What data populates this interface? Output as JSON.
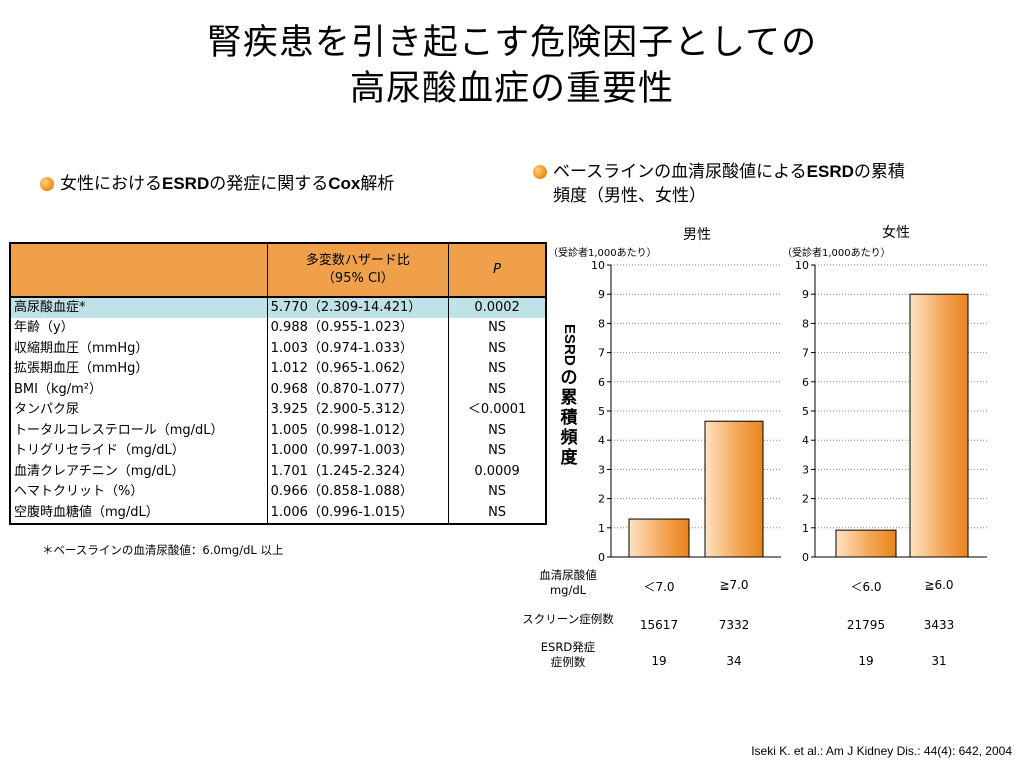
{
  "title": {
    "line1": "腎疾患を引き起こす危険因子としての",
    "line2": "高尿酸血症の重要性"
  },
  "left_heading": {
    "pre": "女性における",
    "b1": "ESRD",
    "mid": "の発症に関する",
    "b2": "Cox",
    "post": "解析"
  },
  "right_heading": {
    "pre": "ベースラインの血清尿酸値による",
    "b1": "ESRD",
    "post": "の累積",
    "line2": "頻度（男性、女性）"
  },
  "table": {
    "header": {
      "col2_line1": "多変数ハザード比",
      "col2_line2": "（95% CI）",
      "col3": "P"
    },
    "rows": [
      {
        "label": "高尿酸血症*",
        "hr": "5.770（2.309-14.421）",
        "p": "0.0002"
      },
      {
        "label": "年齢（y）",
        "hr": "0.988（0.955-1.023）",
        "p": "NS"
      },
      {
        "label": "収縮期血圧（mmHg）",
        "hr": "1.003（0.974-1.033）",
        "p": "NS"
      },
      {
        "label": "拡張期血圧（mmHg）",
        "hr": "1.012（0.965-1.062）",
        "p": "NS"
      },
      {
        "label": "BMI（kg/m²）",
        "hr": "0.968（0.870-1.077）",
        "p": "NS"
      },
      {
        "label": "タンパク尿",
        "hr": "3.925（2.900-5.312）",
        "p": "＜0.0001"
      },
      {
        "label": "トータルコレステロール（mg/dL）",
        "hr": "1.005（0.998-1.012）",
        "p": "NS"
      },
      {
        "label": "トリグリセライド（mg/dL）",
        "hr": "1.000（0.997-1.003）",
        "p": "NS"
      },
      {
        "label": "血清クレアチニン（mg/dL）",
        "hr": "1.701（1.245-2.324）",
        "p": "0.0009"
      },
      {
        "label": "ヘマトクリット（%）",
        "hr": "0.966（0.858-1.088）",
        "p": "NS"
      },
      {
        "label": "空腹時血糖値（mg/dL）",
        "hr": "1.006（0.996-1.015）",
        "p": "NS"
      }
    ]
  },
  "footnote": "＊ベースラインの血清尿酸値：6.0mg/dL 以上",
  "citation": "Iseki K. et al.: Am J Kidney Dis.: 44(4): 642, 2004",
  "colors": {
    "bar_light": "#fde3c4",
    "bar_dark": "#e8841c",
    "header": "#f0a04b",
    "highlight": "#bfe2e8"
  },
  "chart_data": [
    {
      "type": "bar",
      "title": "男性",
      "unit_note": "（受診者1,000あたり）",
      "ylabel": "ESRDの累積頻度",
      "ylim": [
        0,
        10
      ],
      "yticks": [
        "0",
        "1",
        "2",
        "3",
        "4",
        "5",
        "6",
        "7",
        "8",
        "9",
        "10"
      ],
      "categories": [
        "＜7.0",
        "≧7.0"
      ],
      "values": [
        1.3,
        4.65
      ],
      "screened": [
        "15617",
        "7332"
      ],
      "esrd_cases": [
        "19",
        "34"
      ]
    },
    {
      "type": "bar",
      "title": "女性",
      "unit_note": "（受診者1,000あたり）",
      "ylim": [
        0,
        10
      ],
      "yticks": [
        "0",
        "1",
        "2",
        "3",
        "4",
        "5",
        "6",
        "7",
        "8",
        "9",
        "10"
      ],
      "categories": [
        "＜6.0",
        "≧6.0"
      ],
      "values": [
        0.92,
        9.0
      ],
      "screened": [
        "21795",
        "3433"
      ],
      "esrd_cases": [
        "19",
        "31"
      ]
    }
  ],
  "row_labels": {
    "uric_line1": "血清尿酸値",
    "uric_line2": "mg/dL",
    "screened": "スクリーン症例数",
    "esrd_line1": "ESRD発症",
    "esrd_line2": "症例数"
  }
}
